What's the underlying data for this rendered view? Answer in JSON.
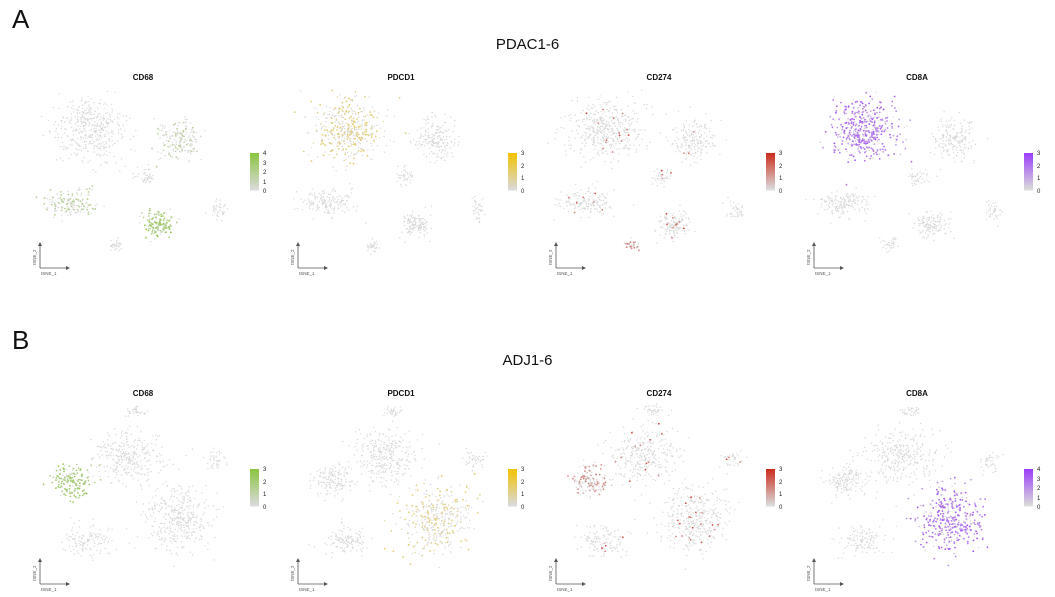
{
  "panels": [
    {
      "letter": "A",
      "title": "PDAC1-6"
    },
    {
      "letter": "B",
      "title": "ADJ1-6"
    }
  ],
  "colors": {
    "background_cell": "#d9d9d9",
    "CD68": "#8ac43f",
    "PDCD1": "#f2c200",
    "CD274": "#cc2a1c",
    "CD8A": "#9b3dfa",
    "axis_arrow": "#555555"
  },
  "chart_data": [
    {
      "type": "scatter",
      "group": "PDAC1-6",
      "title": "CD68",
      "xlabel": "tSNE_1",
      "ylabel": "tSNE_2",
      "legend_ticks": [
        "4",
        "3",
        "2",
        "1",
        "0"
      ],
      "max": 4,
      "color": "#8ac43f",
      "highlight_regions": [
        {
          "region": "lower-middle cluster",
          "level": 0.9
        },
        {
          "region": "left-middle cluster",
          "level": 0.35
        },
        {
          "region": "upper-right cluster",
          "level": 0.2
        }
      ]
    },
    {
      "type": "scatter",
      "group": "PDAC1-6",
      "title": "PDCD1",
      "xlabel": "tSNE_1",
      "ylabel": "tSNE_2",
      "legend_ticks": [
        "3",
        "2",
        "1",
        "0"
      ],
      "max": 3,
      "color": "#f2c200",
      "highlight_regions": [
        {
          "region": "upper-left cluster",
          "level": 0.35
        }
      ]
    },
    {
      "type": "scatter",
      "group": "PDAC1-6",
      "title": "CD274",
      "xlabel": "tSNE_1",
      "ylabel": "tSNE_2",
      "legend_ticks": [
        "3",
        "2",
        "1",
        "0"
      ],
      "max": 3,
      "color": "#cc2a1c",
      "highlight_regions": [
        {
          "region": "scattered",
          "level": 0.3
        },
        {
          "region": "lower-middle small cluster",
          "level": 0.4
        }
      ]
    },
    {
      "type": "scatter",
      "group": "PDAC1-6",
      "title": "CD8A",
      "xlabel": "tSNE_1",
      "ylabel": "tSNE_2",
      "legend_ticks": [
        "3",
        "2",
        "1",
        "0"
      ],
      "max": 3,
      "color": "#9b3dfa",
      "highlight_regions": [
        {
          "region": "upper-left cluster",
          "level": 0.85
        }
      ]
    },
    {
      "type": "scatter",
      "group": "ADJ1-6",
      "title": "CD68",
      "xlabel": "tSNE_1",
      "ylabel": "tSNE_2",
      "legend_ticks": [
        "3",
        "2",
        "1",
        "0"
      ],
      "max": 3,
      "color": "#8ac43f",
      "highlight_regions": [
        {
          "region": "left-middle cluster",
          "level": 0.9
        }
      ]
    },
    {
      "type": "scatter",
      "group": "ADJ1-6",
      "title": "PDCD1",
      "xlabel": "tSNE_1",
      "ylabel": "tSNE_2",
      "legend_ticks": [
        "3",
        "2",
        "1",
        "0"
      ],
      "max": 3,
      "color": "#f2c200",
      "highlight_regions": [
        {
          "region": "lower-right cluster",
          "level": 0.3
        }
      ]
    },
    {
      "type": "scatter",
      "group": "ADJ1-6",
      "title": "CD274",
      "xlabel": "tSNE_1",
      "ylabel": "tSNE_2",
      "legend_ticks": [
        "3",
        "2",
        "1",
        "0"
      ],
      "max": 3,
      "color": "#cc2a1c",
      "highlight_regions": [
        {
          "region": "left-middle cluster",
          "level": 0.35
        },
        {
          "region": "scattered",
          "level": 0.25
        }
      ]
    },
    {
      "type": "scatter",
      "group": "ADJ1-6",
      "title": "CD8A",
      "xlabel": "tSNE_1",
      "ylabel": "tSNE_2",
      "legend_ticks": [
        "4",
        "3",
        "2",
        "1",
        "0"
      ],
      "max": 4,
      "color": "#9b3dfa",
      "highlight_regions": [
        {
          "region": "lower-right cluster",
          "level": 0.85
        }
      ]
    }
  ]
}
